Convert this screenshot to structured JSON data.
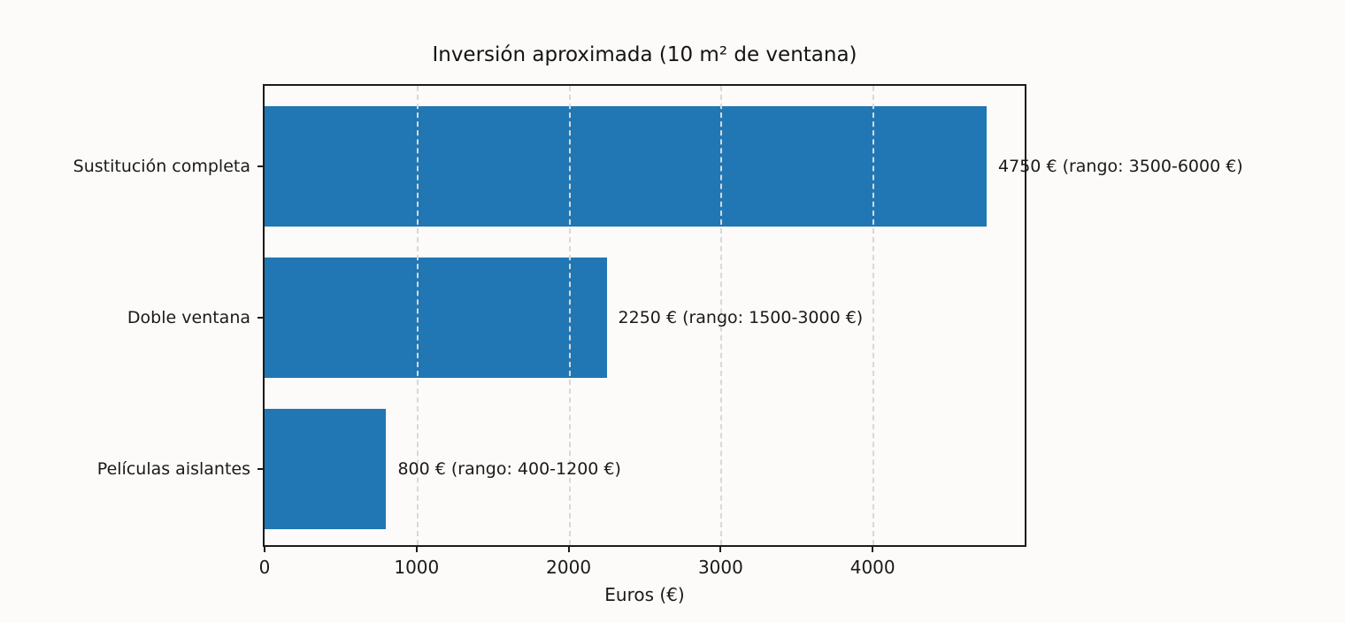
{
  "chart_data": {
    "type": "bar",
    "orientation": "horizontal",
    "title": "Inversión aproximada (10 m² de ventana)",
    "xlabel": "Euros (€)",
    "categories": [
      "Sustitución completa",
      "Doble ventana",
      "Películas aislantes"
    ],
    "values": [
      4750,
      2250,
      800
    ],
    "value_ranges": [
      [
        3500,
        6000
      ],
      [
        1500,
        3000
      ],
      [
        400,
        1200
      ]
    ],
    "annotations": [
      "4750 € (rango: 3500-6000 €)",
      "2250 € (rango: 1500-3000 €)",
      "800 € (rango: 400-1200 €)"
    ],
    "xticks": [
      0,
      1000,
      2000,
      3000,
      4000
    ],
    "xlim": [
      0,
      5000
    ],
    "grid": {
      "axis": "x",
      "style": "dashed",
      "color": "#d8d8d8",
      "over_bars": true
    },
    "legend_position": "none",
    "colors": {
      "bar": "#2177b4",
      "axis": "#1b1b1b",
      "text": "#1a1a1a",
      "background": "#fcfbf9"
    }
  }
}
